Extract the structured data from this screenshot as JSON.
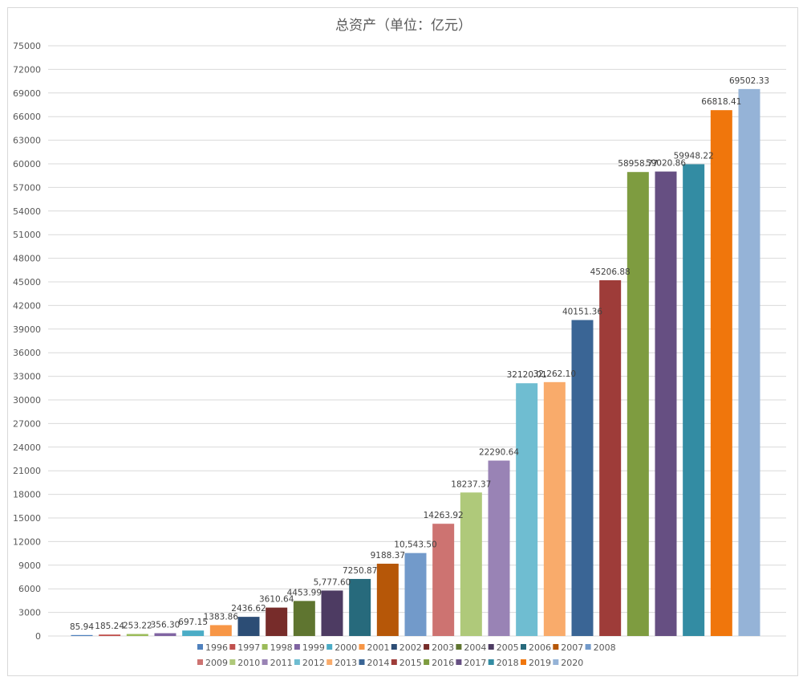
{
  "chart_data": {
    "type": "bar",
    "title": "总资产（单位：亿元）",
    "xlabel": "",
    "ylabel": "",
    "ylim": [
      0,
      75000
    ],
    "y_ticks": [
      0,
      3000,
      6000,
      9000,
      12000,
      15000,
      18000,
      21000,
      24000,
      27000,
      30000,
      33000,
      36000,
      39000,
      42000,
      45000,
      48000,
      51000,
      54000,
      57000,
      60000,
      63000,
      66000,
      69000,
      72000,
      75000
    ],
    "grid": true,
    "legend_position": "bottom",
    "categories": [
      "1996",
      "1997",
      "1998",
      "1999",
      "2000",
      "2001",
      "2002",
      "2003",
      "2004",
      "2005",
      "2006",
      "2007",
      "2008",
      "2009",
      "2010",
      "2011",
      "2012",
      "2013",
      "2014",
      "2015",
      "2016",
      "2017",
      "2018",
      "2019",
      "2020"
    ],
    "values": [
      85.94,
      185.24,
      253.22,
      356.3,
      697.15,
      1383.86,
      2436.62,
      3610.64,
      4453.99,
      5777.6,
      7250.87,
      9188.37,
      10543.5,
      14263.92,
      18237.37,
      22290.64,
      32120.01,
      32262.1,
      40151.36,
      45206.88,
      58958.77,
      59020.86,
      59948.22,
      66818.41,
      69502.33
    ],
    "labels": [
      "85.94",
      "185.24",
      "253.22",
      "356.30",
      "697.15",
      "1383.86",
      "2436.62",
      "3610.64",
      "4453.99",
      "5,777.60",
      "7250.87",
      "9188.37",
      "10,543.50",
      "14263.92",
      "18237.37",
      "22290.64",
      "32120.01",
      "32,262.10",
      "40151.36",
      "45206.88",
      "58958.77",
      "59020.86",
      "59948.22",
      "66818.41",
      "69502.33"
    ],
    "colors": [
      "#4F81BD",
      "#C0504D",
      "#9BBB59",
      "#8064A2",
      "#4BACC6",
      "#F79646",
      "#2C4D75",
      "#772C2A",
      "#5F7530",
      "#4D3B62",
      "#276A7C",
      "#B65708",
      "#729ACA",
      "#CD7371",
      "#AFC97A",
      "#9983B5",
      "#6FBDD1",
      "#F9AB6B",
      "#3A6595",
      "#9E3C39",
      "#7E9C40",
      "#664F82",
      "#338CA3",
      "#F0760C",
      "#95B3D7"
    ]
  }
}
